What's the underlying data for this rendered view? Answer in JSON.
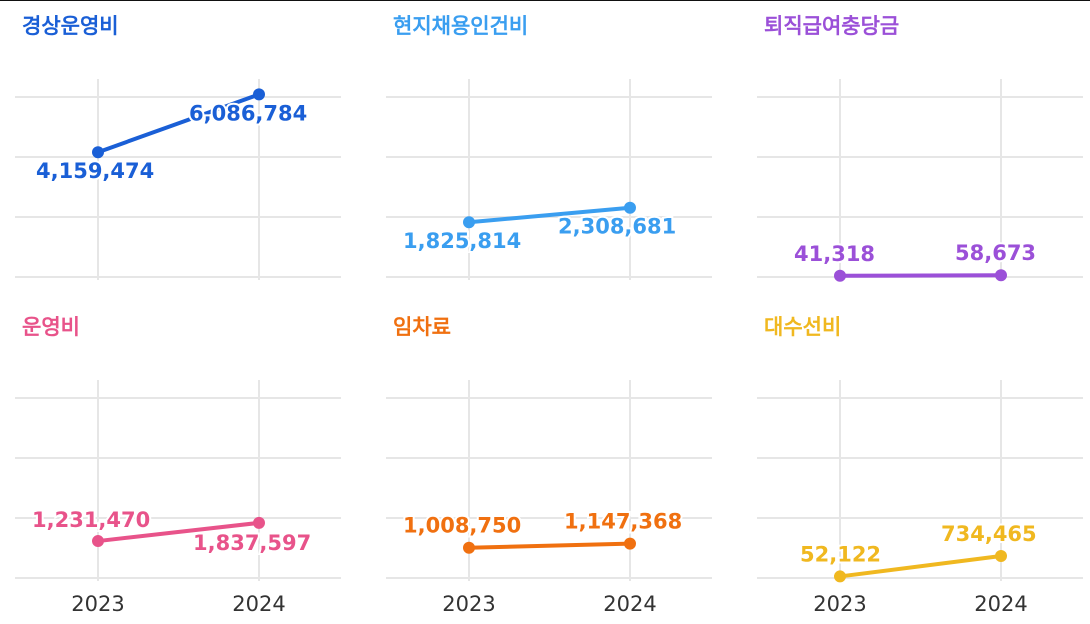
{
  "chart_data": [
    {
      "type": "line",
      "title": "경상운영비",
      "color": "#1a5fd6",
      "values": [
        4159474,
        6086784
      ],
      "value_labels": [
        "4,159,474",
        "6,086,784"
      ],
      "ylim": [
        0,
        6500000
      ],
      "yticks": [
        0,
        2000000,
        4000000,
        6000000
      ],
      "grid": true
    },
    {
      "type": "line",
      "title": "현지채용인건비",
      "color": "#3a9ef0",
      "values": [
        1825814,
        2308681
      ],
      "value_labels": [
        "1,825,814",
        "2,308,681"
      ],
      "ylim": [
        0,
        6500000
      ],
      "yticks": [
        0,
        2000000,
        4000000,
        6000000
      ],
      "grid": true
    },
    {
      "type": "line",
      "title": "퇴직급여충당금",
      "color": "#9b50d8",
      "values": [
        41318,
        58673
      ],
      "value_labels": [
        "41,318",
        "58,673"
      ],
      "ylim": [
        0,
        6500000
      ],
      "yticks": [
        0,
        2000000,
        4000000,
        6000000
      ],
      "grid": true
    },
    {
      "type": "line",
      "title": "운영비",
      "color": "#e8538a",
      "categories": [
        "2023",
        "2024"
      ],
      "values": [
        1231470,
        1837597
      ],
      "value_labels": [
        "1,231,470",
        "1,837,597"
      ],
      "ylim": [
        0,
        6500000
      ],
      "yticks": [
        0,
        2000000,
        4000000,
        6000000
      ],
      "grid": true
    },
    {
      "type": "line",
      "title": "임차료",
      "color": "#f07010",
      "categories": [
        "2023",
        "2024"
      ],
      "values": [
        1008750,
        1147368
      ],
      "value_labels": [
        "1,008,750",
        "1,147,368"
      ],
      "ylim": [
        0,
        6500000
      ],
      "yticks": [
        0,
        2000000,
        4000000,
        6000000
      ],
      "grid": true
    },
    {
      "type": "line",
      "title": "대수선비",
      "color": "#f0b820",
      "categories": [
        "2023",
        "2024"
      ],
      "values": [
        52122,
        734465
      ],
      "value_labels": [
        "52,122",
        "734,465"
      ],
      "ylim": [
        0,
        6500000
      ],
      "yticks": [
        0,
        2000000,
        4000000,
        6000000
      ],
      "grid": true
    }
  ]
}
